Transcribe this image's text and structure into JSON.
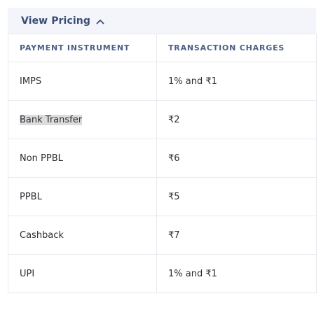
{
  "toggle": {
    "label": "View Pricing",
    "icon": "chevron-up-icon"
  },
  "table": {
    "headers": [
      "PAYMENT INSTRUMENT",
      "TRANSACTION CHARGES"
    ],
    "rows": [
      {
        "instrument": "IMPS",
        "charge": "1% and ₹1"
      },
      {
        "instrument": "Bank Transfer",
        "charge": "₹2"
      },
      {
        "instrument": "Non PPBL",
        "charge": "₹6"
      },
      {
        "instrument": "PPBL",
        "charge": "₹5"
      },
      {
        "instrument": "Cashback",
        "charge": "₹7"
      },
      {
        "instrument": "UPI",
        "charge": "1% and ₹1"
      }
    ]
  }
}
